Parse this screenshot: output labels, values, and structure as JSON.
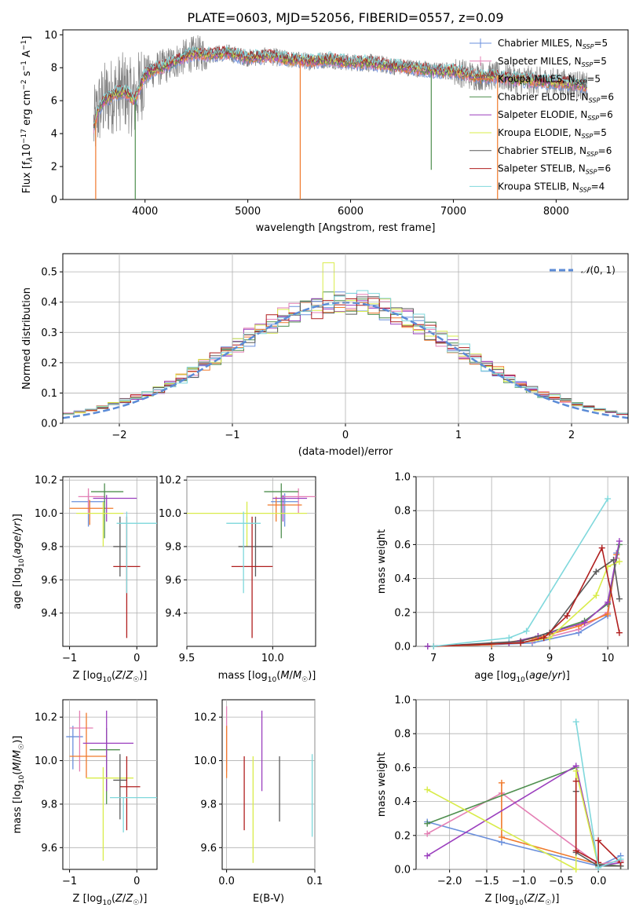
{
  "title": "PLATE=0603, MJD=52056, FIBERID=0557, z=0.09",
  "colors": {
    "Chabrier MILES": "#6a8fdc",
    "Salpeter MILES": "#e47fb4",
    "Kroupa MILES": "#f07a2c",
    "Chabrier ELODIE": "#4f8f4f",
    "Salpeter ELODIE": "#9b3fbe",
    "Kroupa ELODIE": "#d9ec4a",
    "Chabrier STELIB": "#5a5a5a",
    "Salpeter STELIB": "#b01f1f",
    "Kroupa STELIB": "#7fd8dc"
  },
  "legend_labels": [
    "Chabrier MILES, N_SSP=5",
    "Salpeter MILES, N_SSP=5",
    "Kroupa MILES, N_SSP=5",
    "Chabrier ELODIE, N_SSP=6",
    "Salpeter ELODIE, N_SSP=6",
    "Kroupa ELODIE, N_SSP=5",
    "Chabrier STELIB, N_SSP=6",
    "Salpeter STELIB, N_SSP=6",
    "Kroupa STELIB, N_SSP=4"
  ],
  "chart_data": [
    {
      "id": "spectrum",
      "type": "line",
      "title": "PLATE=0603, MJD=52056, FIBERID=0557, z=0.09",
      "xlabel": "wavelength [Angstrom, rest frame]",
      "ylabel": "Flux [f_λ 10^-17 erg cm^-2 s^-1 A^-1]",
      "xlim": [
        3200,
        8700
      ],
      "ylim": [
        0,
        10.3
      ],
      "xticks": [
        4000,
        5000,
        6000,
        7000,
        8000
      ],
      "yticks": [
        0,
        2,
        4,
        6,
        8,
        10
      ],
      "data_color": "#808080",
      "continuum": {
        "x": [
          3500,
          3550,
          3600,
          3650,
          3700,
          3750,
          3800,
          3850,
          3900,
          3950,
          4000,
          4100,
          4200,
          4300,
          4400,
          4500,
          4600,
          4800,
          5000,
          5200,
          5400,
          5600,
          5800,
          6000,
          6200,
          6400,
          6600,
          6800,
          7000,
          7200,
          7400,
          7600,
          7800,
          8000,
          8200,
          8300
        ],
        "y": [
          4.4,
          5.5,
          6.0,
          6.2,
          6.4,
          6.5,
          6.6,
          6.3,
          6.0,
          6.9,
          7.6,
          7.9,
          8.1,
          8.4,
          8.7,
          8.9,
          8.8,
          8.9,
          8.6,
          8.7,
          8.5,
          8.4,
          8.5,
          8.3,
          8.3,
          8.1,
          8.0,
          7.8,
          7.8,
          7.5,
          7.5,
          7.3,
          7.2,
          7.1,
          7.0,
          6.8
        ]
      },
      "spikes": [
        {
          "x": 3520,
          "y": 0,
          "model": "Kroupa MILES"
        },
        {
          "x": 3905,
          "y": 0,
          "model": "Chabrier ELODIE"
        },
        {
          "x": 5510,
          "y": 0,
          "model": "Kroupa MILES"
        },
        {
          "x": 6785,
          "y": 1.8,
          "model": "Chabrier ELODIE"
        },
        {
          "x": 7430,
          "y": 0,
          "model": "Kroupa MILES"
        }
      ]
    },
    {
      "id": "residuals",
      "type": "histogram",
      "xlabel": "(data-model)/error",
      "ylabel": "Normed distribution",
      "xlim": [
        -2.5,
        2.5
      ],
      "ylim": [
        0,
        0.56
      ],
      "xticks": [
        -2,
        -1,
        0,
        1,
        2
      ],
      "yticks": [
        0.0,
        0.1,
        0.2,
        0.3,
        0.4,
        0.5
      ],
      "bin_width": 0.1,
      "normal_curve_label": "N(0,1)",
      "normal_curve_color": "#5b8bd6",
      "peak_annotation": {
        "x": -0.15,
        "y": 0.53,
        "model": "Kroupa ELODIE"
      }
    },
    {
      "id": "age-Z",
      "type": "errorbar",
      "xlabel": "Z [log10(Z/Z☉)]",
      "ylabel": "age [log10(age/yr)]",
      "xlim": [
        -1.1,
        0.3
      ],
      "ylim": [
        9.2,
        10.22
      ],
      "xticks": [
        -1,
        0
      ],
      "yticks": [
        9.4,
        9.6,
        9.8,
        10.0,
        10.2
      ],
      "points": [
        {
          "model": "Chabrier MILES",
          "x": -0.72,
          "xerr": [
            0.25,
            0.25
          ],
          "y": 10.07,
          "yerr": [
            0.15,
            0.05
          ]
        },
        {
          "model": "Salpeter MILES",
          "x": -0.72,
          "xerr": [
            0.15,
            0.25
          ],
          "y": 10.1,
          "yerr": [
            0.1,
            0.05
          ]
        },
        {
          "model": "Kroupa MILES",
          "x": -0.7,
          "xerr": [
            0.3,
            0.35
          ],
          "y": 10.03,
          "yerr": [
            0.1,
            0.05
          ]
        },
        {
          "model": "Chabrier ELODIE",
          "x": -0.48,
          "xerr": [
            0.2,
            0.28
          ],
          "y": 10.13,
          "yerr": [
            0.28,
            0.05
          ]
        },
        {
          "model": "Salpeter ELODIE",
          "x": -0.45,
          "xerr": [
            0.2,
            0.45
          ],
          "y": 10.09,
          "yerr": [
            0.14,
            0.02
          ]
        },
        {
          "model": "Kroupa ELODIE",
          "x": -0.5,
          "xerr": [
            0.4,
            0.3
          ],
          "y": 10.0,
          "yerr": [
            0.2,
            0.07
          ]
        },
        {
          "model": "Chabrier STELIB",
          "x": -0.25,
          "xerr": [
            0.1,
            0.1
          ],
          "y": 9.8,
          "yerr": [
            0.18,
            0.18
          ]
        },
        {
          "model": "Salpeter STELIB",
          "x": -0.15,
          "xerr": [
            0.2,
            0.2
          ],
          "y": 9.68,
          "yerr": [
            0.43,
            0.3
          ]
        },
        {
          "model": "Kroupa STELIB",
          "x": -0.15,
          "xerr": [
            0.15,
            0.45
          ],
          "y": 9.94,
          "yerr": [
            0.42,
            0.07
          ]
        }
      ]
    },
    {
      "id": "age-mass",
      "type": "errorbar",
      "xlabel": "mass [log10(M/M☉)]",
      "xlim": [
        9.5,
        10.25
      ],
      "ylim": [
        9.2,
        10.22
      ],
      "xticks": [
        9.5,
        10.0
      ],
      "yticks": [
        9.4,
        9.6,
        9.8,
        10.0,
        10.2
      ],
      "points": [
        {
          "model": "Chabrier MILES",
          "x": 10.07,
          "xerr": [
            0.08,
            0.08
          ],
          "y": 10.07,
          "yerr": [
            0.15,
            0.05
          ]
        },
        {
          "model": "Salpeter MILES",
          "x": 10.15,
          "xerr": [
            0.1,
            0.1
          ],
          "y": 10.1,
          "yerr": [
            0.1,
            0.05
          ]
        },
        {
          "model": "Kroupa MILES",
          "x": 10.02,
          "xerr": [
            0.05,
            0.15
          ],
          "y": 10.05,
          "yerr": [
            0.1,
            0.05
          ]
        },
        {
          "model": "Chabrier ELODIE",
          "x": 10.05,
          "xerr": [
            0.1,
            0.1
          ],
          "y": 10.13,
          "yerr": [
            0.28,
            0.05
          ]
        },
        {
          "model": "Salpeter ELODIE",
          "x": 10.06,
          "xerr": [
            0.06,
            0.14
          ],
          "y": 10.09,
          "yerr": [
            0.14,
            0.02
          ]
        },
        {
          "model": "Kroupa ELODIE",
          "x": 9.85,
          "xerr": [
            0.35,
            0.35
          ],
          "y": 10.0,
          "yerr": [
            0.2,
            0.07
          ]
        },
        {
          "model": "Chabrier STELIB",
          "x": 9.9,
          "xerr": [
            0.1,
            0.1
          ],
          "y": 9.8,
          "yerr": [
            0.18,
            0.18
          ]
        },
        {
          "model": "Salpeter STELIB",
          "x": 9.88,
          "xerr": [
            0.12,
            0.12
          ],
          "y": 9.68,
          "yerr": [
            0.43,
            0.3
          ]
        },
        {
          "model": "Kroupa STELIB",
          "x": 9.83,
          "xerr": [
            0.1,
            0.1
          ],
          "y": 9.94,
          "yerr": [
            0.42,
            0.07
          ]
        }
      ]
    },
    {
      "id": "weight-age",
      "type": "line",
      "xlabel": "age [log10(age/yr)]",
      "ylabel": "mass weight",
      "xlim": [
        6.7,
        10.35
      ],
      "ylim": [
        0,
        1.0
      ],
      "xticks": [
        7,
        8,
        9,
        10
      ],
      "yticks": [
        0.0,
        0.2,
        0.4,
        0.6,
        0.8,
        1.0
      ],
      "series": [
        {
          "model": "Chabrier MILES",
          "x": [
            7.0,
            8.0,
            8.7,
            9.5,
            10.0,
            10.15
          ],
          "y": [
            0.0,
            0.01,
            0.02,
            0.08,
            0.18,
            0.55
          ]
        },
        {
          "model": "Salpeter MILES",
          "x": [
            7.0,
            8.0,
            8.7,
            9.5,
            10.0,
            10.15
          ],
          "y": [
            0.0,
            0.01,
            0.03,
            0.1,
            0.2,
            0.52
          ]
        },
        {
          "model": "Kroupa MILES",
          "x": [
            7.0,
            8.0,
            8.8,
            9.5,
            10.0,
            10.15
          ],
          "y": [
            0.0,
            0.01,
            0.05,
            0.12,
            0.19,
            0.54
          ]
        },
        {
          "model": "Chabrier ELODIE",
          "x": [
            6.9,
            8.3,
            8.8,
            9.6,
            10.0,
            10.2
          ],
          "y": [
            0.0,
            0.02,
            0.06,
            0.15,
            0.25,
            0.6
          ]
        },
        {
          "model": "Salpeter ELODIE",
          "x": [
            6.9,
            8.3,
            8.8,
            9.6,
            10.0,
            10.2
          ],
          "y": [
            0.0,
            0.02,
            0.06,
            0.14,
            0.26,
            0.62
          ]
        },
        {
          "model": "Kroupa ELODIE",
          "x": [
            7.0,
            8.5,
            9.0,
            9.8,
            10.0,
            10.2
          ],
          "y": [
            0.0,
            0.02,
            0.05,
            0.3,
            0.47,
            0.5
          ]
        },
        {
          "model": "Chabrier STELIB",
          "x": [
            7.0,
            8.5,
            9.0,
            9.8,
            10.1,
            10.2
          ],
          "y": [
            0.0,
            0.03,
            0.08,
            0.44,
            0.51,
            0.28
          ]
        },
        {
          "model": "Salpeter STELIB",
          "x": [
            7.0,
            8.5,
            8.9,
            9.3,
            9.9,
            10.2
          ],
          "y": [
            0.0,
            0.02,
            0.05,
            0.18,
            0.58,
            0.08
          ]
        },
        {
          "model": "Kroupa STELIB",
          "x": [
            7.0,
            8.3,
            8.6,
            10.0
          ],
          "y": [
            0.0,
            0.05,
            0.09,
            0.87
          ]
        }
      ]
    },
    {
      "id": "mass-Z",
      "type": "errorbar",
      "xlabel": "Z [log10(Z/Z☉)]",
      "ylabel": "mass [log10(M/M☉)]",
      "xlim": [
        -1.1,
        0.3
      ],
      "ylim": [
        9.5,
        10.28
      ],
      "xticks": [
        -1,
        0
      ],
      "yticks": [
        9.6,
        9.8,
        10.0,
        10.2
      ],
      "points": [
        {
          "model": "Chabrier MILES",
          "x": -0.95,
          "xerr": [
            0.1,
            0.15
          ],
          "y": 10.11,
          "yerr": [
            0.15,
            0.05
          ]
        },
        {
          "model": "Salpeter MILES",
          "x": -0.85,
          "xerr": [
            0.15,
            0.2
          ],
          "y": 10.15,
          "yerr": [
            0.2,
            0.08
          ]
        },
        {
          "model": "Kroupa MILES",
          "x": -0.75,
          "xerr": [
            0.25,
            0.3
          ],
          "y": 10.02,
          "yerr": [
            0.1,
            0.2
          ]
        },
        {
          "model": "Chabrier ELODIE",
          "x": -0.45,
          "xerr": [
            0.25,
            0.2
          ],
          "y": 10.05,
          "yerr": [
            0.25,
            0.1
          ]
        },
        {
          "model": "Salpeter ELODIE",
          "x": -0.45,
          "xerr": [
            0.35,
            0.4
          ],
          "y": 10.08,
          "yerr": [
            0.22,
            0.15
          ]
        },
        {
          "model": "Kroupa ELODIE",
          "x": -0.5,
          "xerr": [
            0.25,
            0.45
          ],
          "y": 9.92,
          "yerr": [
            0.38,
            0.05
          ]
        },
        {
          "model": "Chabrier STELIB",
          "x": -0.25,
          "xerr": [
            0.1,
            0.1
          ],
          "y": 9.91,
          "yerr": [
            0.18,
            0.12
          ]
        },
        {
          "model": "Salpeter STELIB",
          "x": -0.15,
          "xerr": [
            0.1,
            0.2
          ],
          "y": 9.88,
          "yerr": [
            0.2,
            0.14
          ]
        },
        {
          "model": "Kroupa STELIB",
          "x": -0.2,
          "xerr": [
            0.2,
            0.5
          ],
          "y": 9.83,
          "yerr": [
            0.16,
            0.0
          ]
        }
      ]
    },
    {
      "id": "mass-EBV",
      "type": "errorbar",
      "xlabel": "E(B-V)",
      "xlim": [
        -0.005,
        0.1
      ],
      "ylim": [
        9.5,
        10.28
      ],
      "xticks": [
        0.0,
        0.1
      ],
      "yticks": [
        9.6,
        9.8,
        10.0,
        10.2
      ],
      "points": [
        {
          "model": "Salpeter MILES",
          "x": 0.0,
          "xerr": [
            0,
            0
          ],
          "y": 10.15,
          "yerr": [
            0.2,
            0.1
          ]
        },
        {
          "model": "Kroupa MILES",
          "x": 0.0,
          "xerr": [
            0,
            0
          ],
          "y": 10.02,
          "yerr": [
            0.1,
            0.14
          ]
        },
        {
          "model": "Salpeter STELIB",
          "x": 0.02,
          "xerr": [
            0,
            0
          ],
          "y": 9.85,
          "yerr": [
            0.17,
            0.17
          ]
        },
        {
          "model": "Kroupa ELODIE",
          "x": 0.03,
          "xerr": [
            0,
            0
          ],
          "y": 9.77,
          "yerr": [
            0.24,
            0.25
          ]
        },
        {
          "model": "Salpeter ELODIE",
          "x": 0.04,
          "xerr": [
            0,
            0
          ],
          "y": 10.08,
          "yerr": [
            0.22,
            0.15
          ]
        },
        {
          "model": "Chabrier STELIB",
          "x": 0.06,
          "xerr": [
            0,
            0
          ],
          "y": 9.87,
          "yerr": [
            0.15,
            0.15
          ]
        },
        {
          "model": "Kroupa STELIB",
          "x": 0.097,
          "xerr": [
            0,
            0
          ],
          "y": 9.85,
          "yerr": [
            0.2,
            0.18
          ]
        }
      ]
    },
    {
      "id": "weight-Z",
      "type": "line",
      "xlabel": "Z [log10(Z/Z☉)]",
      "ylabel": "mass weight",
      "xlim": [
        -2.45,
        0.4
      ],
      "ylim": [
        0,
        1.0
      ],
      "xticks": [
        -2.0,
        -1.5,
        -1.0,
        -0.5,
        0.0
      ],
      "yticks": [
        0.0,
        0.2,
        0.4,
        0.6,
        0.8,
        1.0
      ],
      "series": [
        {
          "model": "Chabrier MILES",
          "x": [
            -2.3,
            -1.3,
            0.0,
            0.3
          ],
          "y": [
            0.28,
            0.16,
            0.02,
            0.08
          ]
        },
        {
          "model": "Salpeter MILES",
          "x": [
            -2.3,
            -1.3,
            0.0,
            0.3
          ],
          "y": [
            0.21,
            0.45,
            0.03,
            0.05
          ]
        },
        {
          "model": "Kroupa MILES",
          "x": [
            -1.3,
            -1.3,
            0.0,
            0.3
          ],
          "y": [
            0.51,
            0.19,
            0.03,
            0.02
          ]
        },
        {
          "model": "Chabrier ELODIE",
          "x": [
            -2.3,
            -0.3,
            0.0,
            0.3
          ],
          "y": [
            0.27,
            0.6,
            0.03,
            0.02
          ]
        },
        {
          "model": "Salpeter ELODIE",
          "x": [
            -2.3,
            -0.3,
            0.0,
            0.3
          ],
          "y": [
            0.08,
            0.61,
            0.02,
            0.04
          ]
        },
        {
          "model": "Kroupa ELODIE",
          "x": [
            -2.3,
            -0.3,
            -0.3,
            0.0
          ],
          "y": [
            0.47,
            0.0,
            0.58,
            0.02
          ]
        },
        {
          "model": "Chabrier STELIB",
          "x": [
            -0.3,
            -0.3,
            0.0,
            0.3
          ],
          "y": [
            0.46,
            0.1,
            0.02,
            0.02
          ]
        },
        {
          "model": "Salpeter STELIB",
          "x": [
            -0.3,
            -0.3,
            0.0,
            0.0,
            0.3
          ],
          "y": [
            0.52,
            0.11,
            0.04,
            0.17,
            0.04
          ]
        },
        {
          "model": "Kroupa STELIB",
          "x": [
            -0.3,
            0.0,
            0.3
          ],
          "y": [
            0.87,
            0.01,
            0.06
          ]
        }
      ]
    }
  ]
}
